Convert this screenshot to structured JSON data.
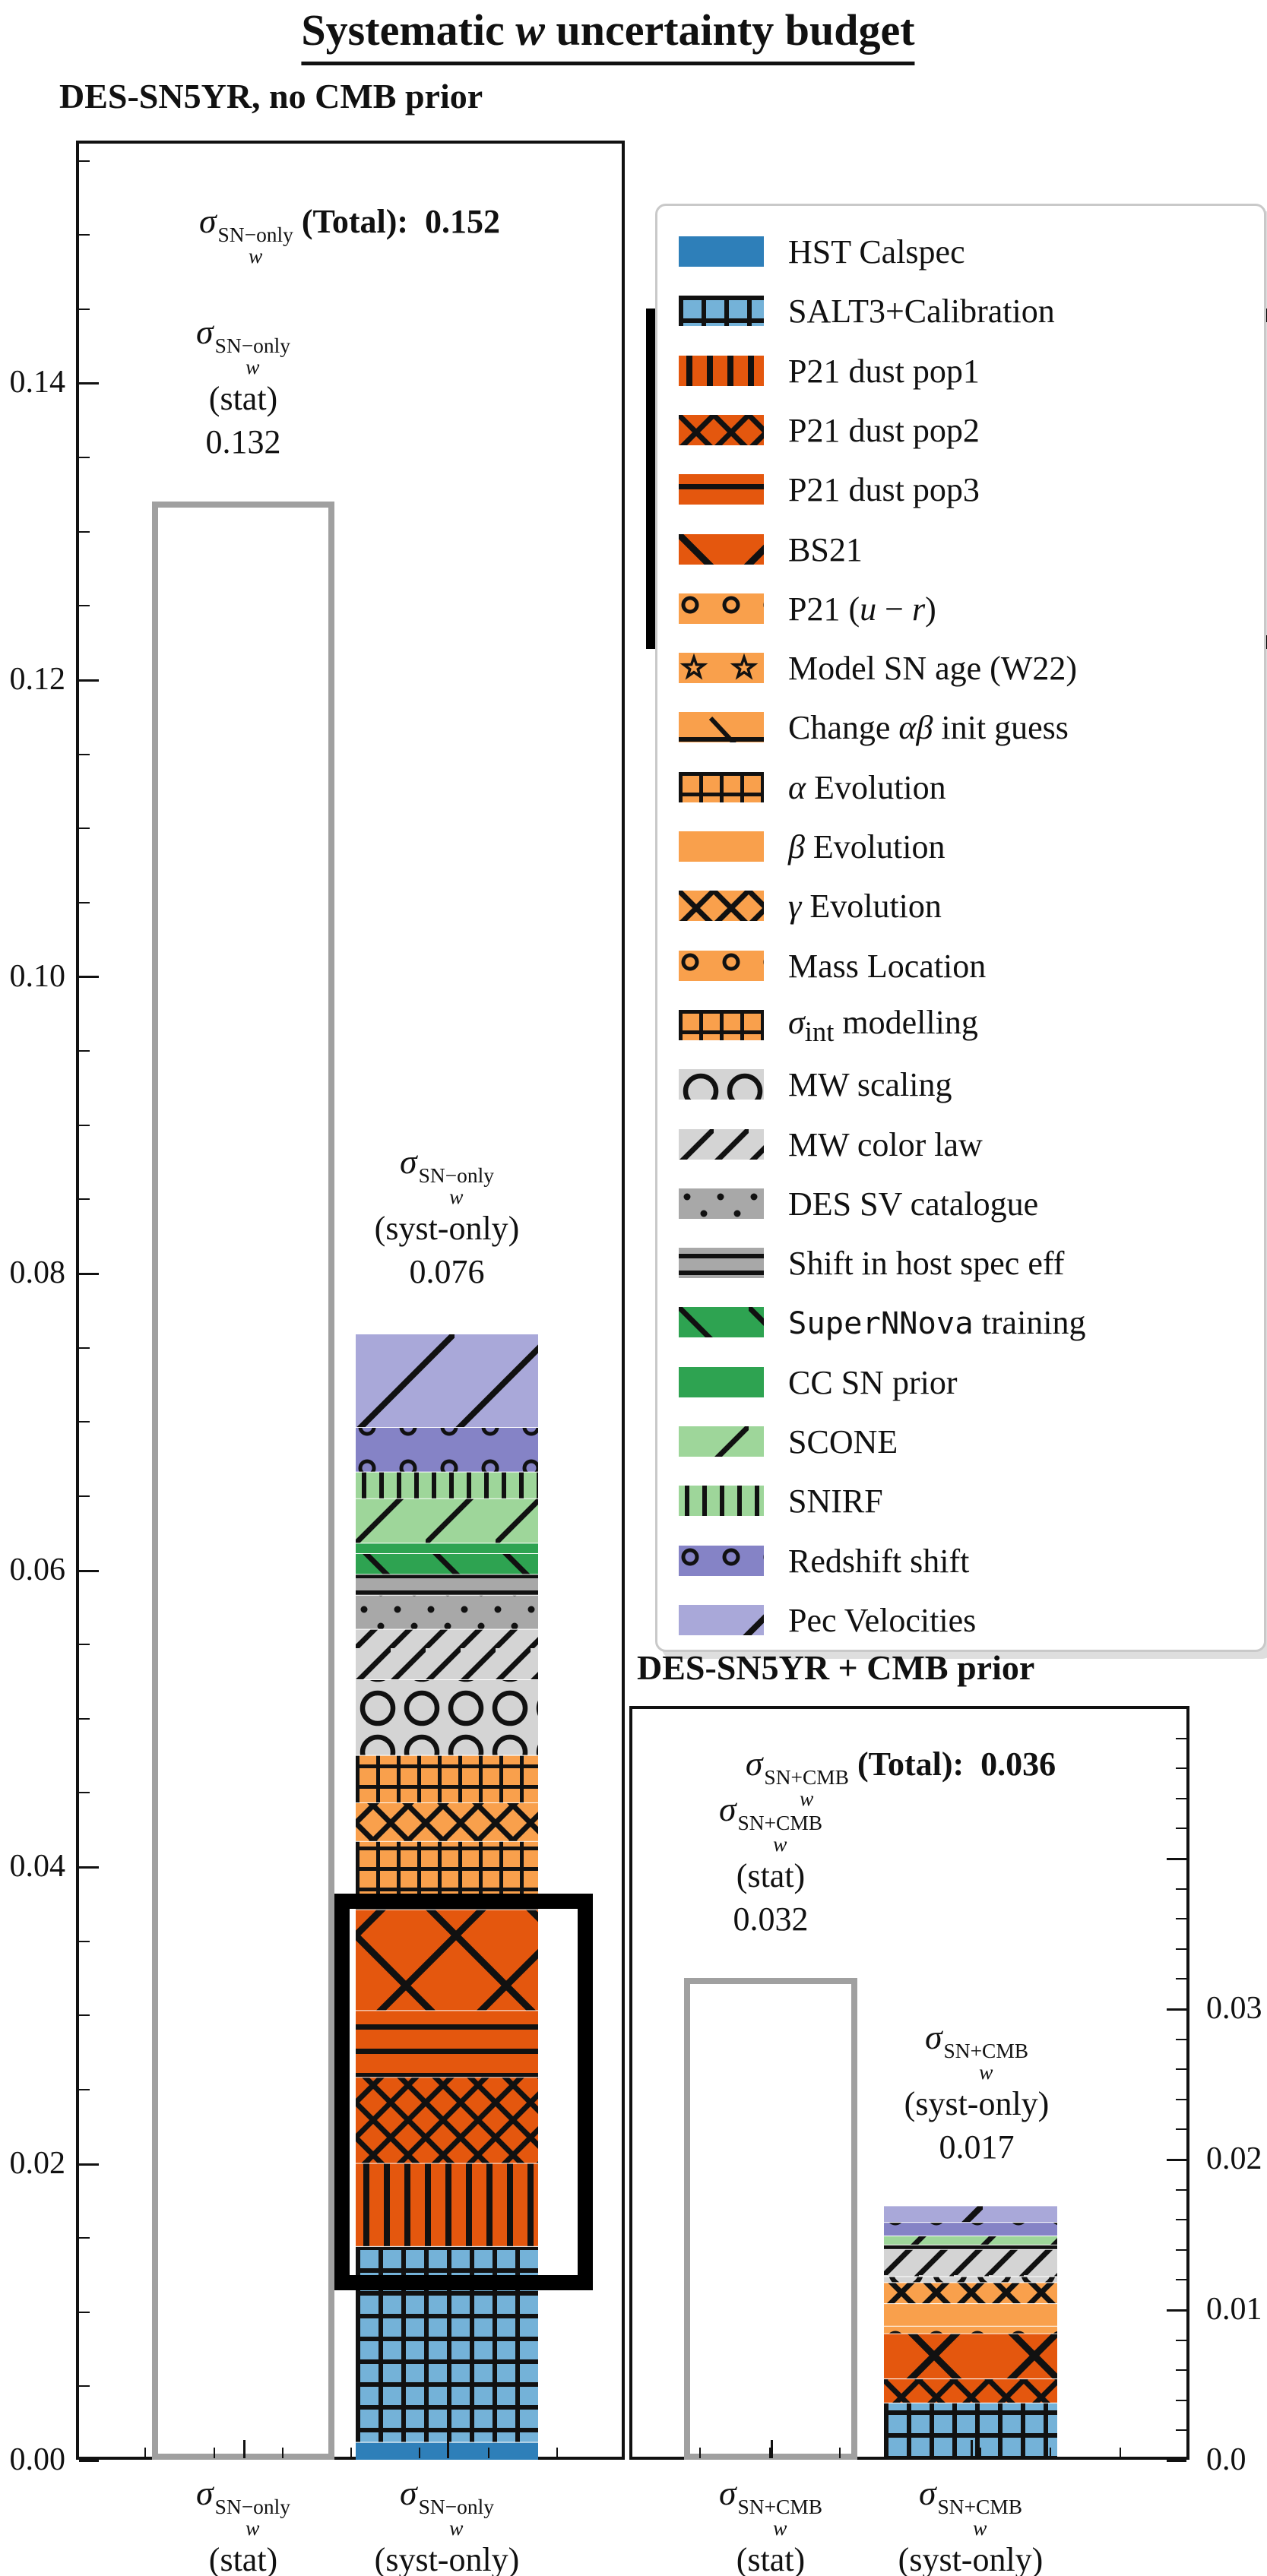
{
  "title_html": "Systematic <i>w</i> uncertainty budget",
  "panels": {
    "left": {
      "title": "DES-SN5YR, no CMB prior",
      "total": {
        "sup": "SN−only",
        "sub": "w",
        "label": "(Total):",
        "value": "0.152"
      },
      "stat_annotation": {
        "sup": "SN−only",
        "sub": "w",
        "paren": "(stat)",
        "value": "0.132"
      },
      "syst_annotation": {
        "sup": "SN−only",
        "sub": "w",
        "paren": "(syst-only)",
        "value": "0.076"
      },
      "ytick_labels": [
        "0.00",
        "0.02",
        "0.04",
        "0.06",
        "0.08",
        "0.10",
        "0.12",
        "0.14"
      ],
      "xtick_labels": [
        {
          "sup": "SN−only",
          "sub": "w",
          "paren": "(stat)"
        },
        {
          "sup": "SN−only",
          "sub": "w",
          "paren": "(syst-only)"
        }
      ]
    },
    "right": {
      "title": "DES-SN5YR + CMB prior",
      "total": {
        "sup": "SN+CMB",
        "sub": "w",
        "label": "(Total):",
        "value": "0.036"
      },
      "stat_annotation": {
        "sup": "SN+CMB",
        "sub": "w",
        "paren": "(stat)",
        "value": "0.032"
      },
      "syst_annotation": {
        "sup": "SN+CMB",
        "sub": "w",
        "paren": "(syst-only)",
        "value": "0.017"
      },
      "ytick_labels": [
        "0.0",
        "0.01",
        "0.02",
        "0.03"
      ],
      "xtick_labels": [
        {
          "sup": "SN+CMB",
          "sub": "w",
          "paren": "(stat)"
        },
        {
          "sup": "SN+CMB",
          "sub": "w",
          "paren": "(syst-only)"
        }
      ]
    }
  },
  "legend": {
    "highlight_group": [
      "P21 dust pop1",
      "P21 dust pop2",
      "P21 dust pop3",
      "BS21",
      "P21 (u − r)"
    ],
    "entries": [
      {
        "label_html": "HST Calspec",
        "color": "#2e7fb9",
        "hatch": "none",
        "boxed": false
      },
      {
        "label_html": "SALT3+Calibration",
        "color": "#74b2d8",
        "hatch": "grid-big",
        "boxed": false
      },
      {
        "label_html": "P21 dust pop1",
        "color": "#e4570e",
        "hatch": "vline",
        "boxed": true
      },
      {
        "label_html": "P21 dust pop2",
        "color": "#e4570e",
        "hatch": "xhatch",
        "boxed": true
      },
      {
        "label_html": "P21 dust pop3",
        "color": "#e4570e",
        "hatch": "hline",
        "boxed": true
      },
      {
        "label_html": "BS21",
        "color": "#e4570e",
        "hatch": "bigx",
        "boxed": true
      },
      {
        "label_html": "P21 (<i>u</i> − <i>r</i>)",
        "color": "#f9a04c",
        "hatch": "circ-sm",
        "boxed": true
      },
      {
        "label_html": "Model SN age (W22)",
        "color": "#f9a04c",
        "hatch": "stars",
        "boxed": false
      },
      {
        "label_html": "Change <i>αβ</i> init guess",
        "color": "#f9a04c",
        "hatch": "dash-diag",
        "boxed": false
      },
      {
        "label_html": "<i>α</i> Evolution",
        "color": "#f9a04c",
        "hatch": "grid-dense",
        "boxed": false
      },
      {
        "label_html": "<i>β</i> Evolution",
        "color": "#f9a04c",
        "hatch": "none",
        "boxed": false
      },
      {
        "label_html": "<i>γ</i> Evolution",
        "color": "#f9a04c",
        "hatch": "xhatch",
        "boxed": false
      },
      {
        "label_html": "Mass Location",
        "color": "#f9a04c",
        "hatch": "circ-sm",
        "boxed": false
      },
      {
        "label_html": "<i>σ</i><sub>int</sub> modelling",
        "color": "#f9a04c",
        "hatch": "grid-dense",
        "boxed": false
      },
      {
        "label_html": "MW scaling",
        "color": "#d4d4d4",
        "hatch": "circ-lg",
        "boxed": false
      },
      {
        "label_html": "MW color law",
        "color": "#d4d4d4",
        "hatch": "diag45",
        "boxed": false
      },
      {
        "label_html": "DES SV catalogue",
        "color": "#a8a8a8",
        "hatch": "dots",
        "boxed": false
      },
      {
        "label_html": "Shift in host spec eff",
        "color": "#a8a8a8",
        "hatch": "hline-dense",
        "boxed": false
      },
      {
        "label_html": "<span class=\"mono\">SuperNNova</span> training",
        "color": "#2ea351",
        "hatch": "diagb",
        "boxed": false
      },
      {
        "label_html": "CC SN prior",
        "color": "#2ea351",
        "hatch": "none",
        "boxed": false
      },
      {
        "label_html": "SCONE",
        "color": "#9ed69a",
        "hatch": "diag90",
        "boxed": false
      },
      {
        "label_html": "SNIRF",
        "color": "#9ed69a",
        "hatch": "vline-dense",
        "boxed": false
      },
      {
        "label_html": "Redshift shift",
        "color": "#8583c6",
        "hatch": "circ-sm",
        "boxed": false
      },
      {
        "label_html": "Pec Velocities",
        "color": "#a9a8d9",
        "hatch": "diag130",
        "boxed": false
      }
    ]
  },
  "chart_data": [
    {
      "type": "bar",
      "stacked": true,
      "title": "DES-SN5YR, no CMB prior",
      "ylabel": "",
      "ylim": [
        0,
        0.156
      ],
      "yticks": [
        0.0,
        0.02,
        0.04,
        0.06,
        0.08,
        0.1,
        0.12,
        0.14
      ],
      "total": 0.152,
      "categories": [
        "σ_w^{SN−only} (stat)",
        "σ_w^{SN−only} (syst-only)"
      ],
      "bars": [
        {
          "category": "σ_w^{SN−only} (stat)",
          "style": "open",
          "value": 0.132
        },
        {
          "category": "σ_w^{SN−only} (syst-only)",
          "style": "stacked",
          "value": 0.076,
          "segments": [
            [
              "HST Calspec",
              0.0012
            ],
            [
              "SALT3+Calibration",
              0.0132
            ],
            [
              "P21 dust pop1",
              0.0056
            ],
            [
              "P21 dust pop2",
              0.0058
            ],
            [
              "P21 dust pop3",
              0.0045
            ],
            [
              "BS21",
              0.0068
            ],
            [
              "α Evolution",
              0.0046
            ],
            [
              "γ Evolution",
              0.0026
            ],
            [
              "σint modelling",
              0.0032
            ],
            [
              "MW scaling",
              0.0051
            ],
            [
              "MW color law",
              0.0034
            ],
            [
              "DES SV catalogue",
              0.0023
            ],
            [
              "Shift in host spec eff",
              0.0014
            ],
            [
              "SuperNNova training",
              0.0014
            ],
            [
              "CC SN prior",
              0.0007
            ],
            [
              "SCONE",
              0.003
            ],
            [
              "SNIRF",
              0.0018
            ],
            [
              "Redshift shift",
              0.003
            ],
            [
              "Pec Velocities",
              0.0063
            ]
          ]
        }
      ]
    },
    {
      "type": "bar",
      "stacked": true,
      "title": "DES-SN5YR + CMB prior",
      "ylabel": "",
      "ylim": [
        0,
        0.05
      ],
      "yticks": [
        0.0,
        0.01,
        0.02,
        0.03
      ],
      "total": 0.036,
      "categories": [
        "σ_w^{SN+CMB} (stat)",
        "σ_w^{SN+CMB} (syst-only)"
      ],
      "bars": [
        {
          "category": "σ_w^{SN+CMB} (stat)",
          "style": "open",
          "value": 0.032
        },
        {
          "category": "σ_w^{SN+CMB} (syst-only)",
          "style": "stacked",
          "value": 0.017,
          "segments": [
            [
              "SALT3+Calibration",
              0.0038
            ],
            [
              "P21 dust pop2",
              0.0016
            ],
            [
              "BS21",
              0.003
            ],
            [
              "Mass Location",
              0.0005
            ],
            [
              "β Evolution",
              0.0015
            ],
            [
              "γ Evolution",
              0.0014
            ],
            [
              "MW scaling",
              0.0004
            ],
            [
              "MW color law",
              0.0018
            ],
            [
              "Shift in host spec eff",
              0.0003
            ],
            [
              "SCONE",
              0.0006
            ],
            [
              "Redshift shift",
              0.0009
            ],
            [
              "Pec Velocities",
              0.0011
            ]
          ]
        }
      ]
    }
  ]
}
